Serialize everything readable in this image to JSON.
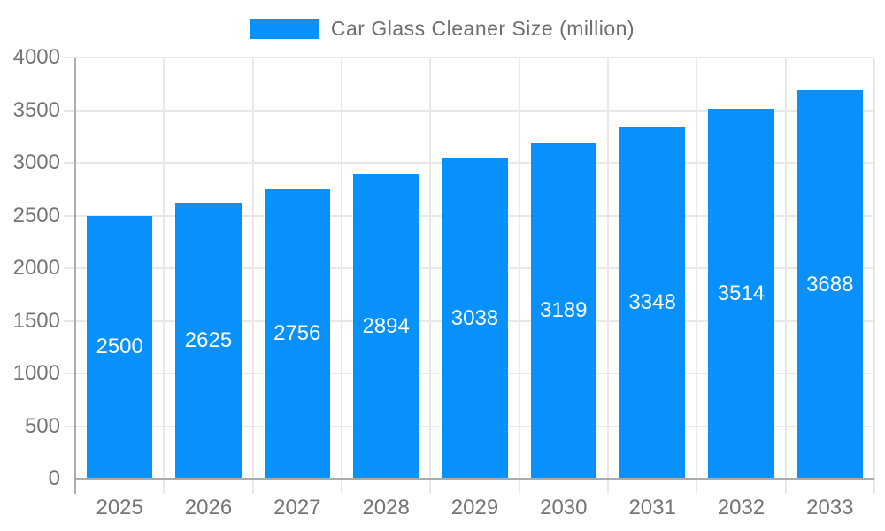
{
  "legend": {
    "label": "Car Glass Cleaner Size (million)"
  },
  "chart_data": {
    "type": "bar",
    "title": "Car Glass Cleaner Size (million)",
    "categories": [
      "2025",
      "2026",
      "2027",
      "2028",
      "2029",
      "2030",
      "2031",
      "2032",
      "2033"
    ],
    "series": [
      {
        "name": "Car Glass Cleaner Size (million)",
        "values": [
          2500,
          2625,
          2756,
          2894,
          3038,
          3189,
          3348,
          3514,
          3688
        ]
      }
    ],
    "bar_value_labels": [
      "2500",
      "2625",
      "2756",
      "2894",
      "3038",
      "3189",
      "3348",
      "3514",
      "3688"
    ],
    "xlabel": "",
    "ylabel": "",
    "ylim": [
      0,
      4000
    ],
    "yticks": [
      0,
      500,
      1000,
      1500,
      2000,
      2500,
      3000,
      3500,
      4000
    ],
    "grid": true,
    "legend_position": "top",
    "colors": {
      "bar": "#0890FB",
      "bar_label_text": "#FFFFFF",
      "axis_text": "#757575",
      "legend_text": "#6E6E6E",
      "axis_line": "#ABABAB",
      "gridline": "#E8E8E8",
      "background": "#FFFFFF"
    }
  }
}
